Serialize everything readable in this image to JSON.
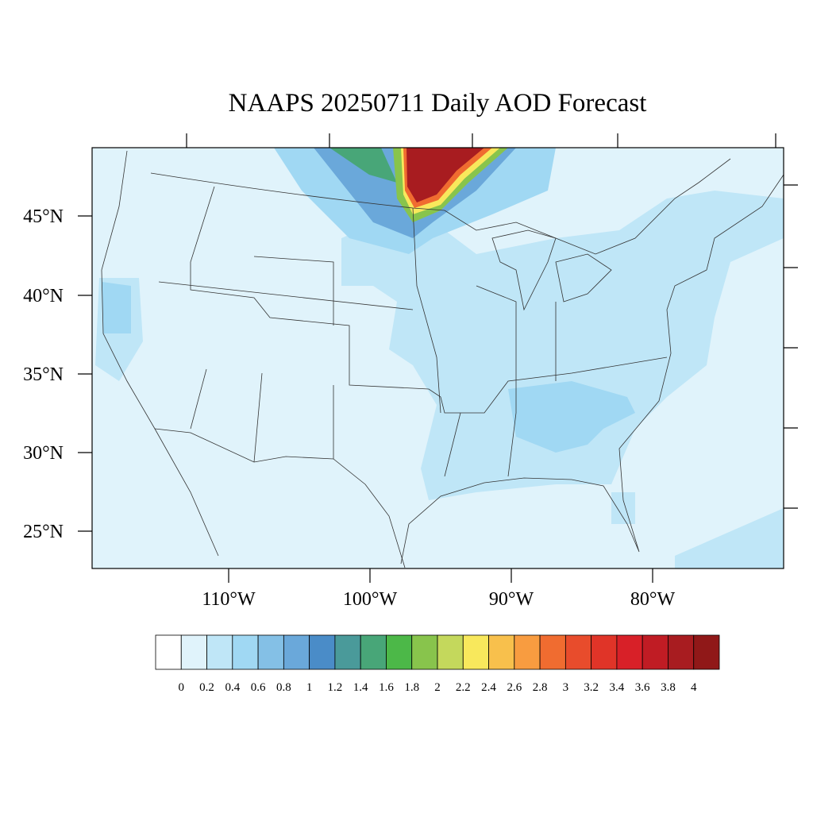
{
  "title": "NAAPS 20250711 Daily AOD Forecast",
  "lat_labels": [
    "45°N",
    "40°N",
    "35°N",
    "30°N",
    "25°N"
  ],
  "lon_labels": [
    "110°W",
    "100°W",
    "90°W",
    "80°W"
  ],
  "colorbar": {
    "labels": [
      0,
      0.2,
      0.4,
      0.6,
      0.8,
      1,
      1.2,
      1.4,
      1.6,
      1.8,
      2,
      2.2,
      2.4,
      2.6,
      2.8,
      3,
      3.2,
      3.4,
      3.6,
      3.8,
      4
    ],
    "colors": [
      "#ffffff",
      "#e0f3fb",
      "#bfe6f7",
      "#a0d8f3",
      "#84c0e6",
      "#6aa8da",
      "#4a8cc8",
      "#4a9a9a",
      "#48a678",
      "#4cb848",
      "#88c44c",
      "#c4d85c",
      "#f8e85c",
      "#f8c04c",
      "#f89c40",
      "#f06c30",
      "#e84c2c",
      "#e03428",
      "#d82028",
      "#c01c24",
      "#a81c20",
      "#901818"
    ]
  }
}
